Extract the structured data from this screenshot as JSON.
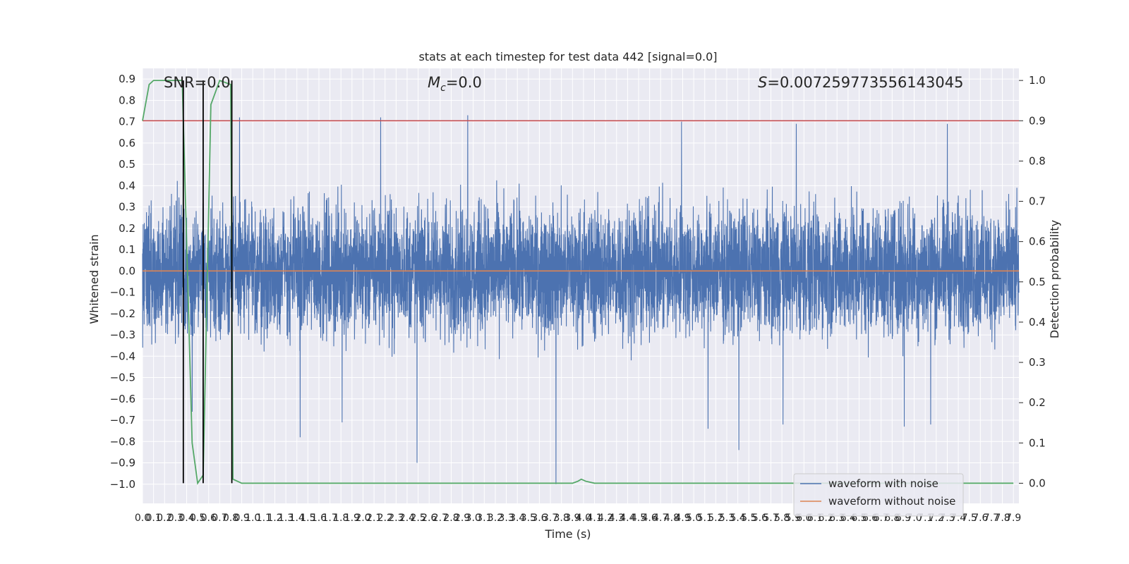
{
  "chart_data": {
    "type": "line",
    "title": "stats at each timestep for test data 442 [signal=0.0]",
    "xlabel": "Time (s)",
    "ylabel": "Whitened strain",
    "y2label": "Detection probability",
    "xlim": [
      0.0,
      7.95
    ],
    "ylim": [
      -1.09,
      0.95
    ],
    "y2lim": [
      -0.05,
      1.03
    ],
    "grid": true,
    "legend_position": "lower right",
    "x_ticks": [
      0.0,
      0.1,
      0.2,
      0.3,
      0.4,
      0.5,
      0.6,
      0.7,
      0.8,
      0.9,
      1.0,
      1.1,
      1.2,
      1.3,
      1.4,
      1.5,
      1.6,
      1.7,
      1.8,
      1.9,
      2.0,
      2.1,
      2.2,
      2.3,
      2.4,
      2.5,
      2.6,
      2.7,
      2.8,
      2.9,
      3.0,
      3.1,
      3.2,
      3.3,
      3.4,
      3.5,
      3.6,
      3.7,
      3.8,
      3.9,
      4.0,
      4.1,
      4.2,
      4.3,
      4.4,
      4.5,
      4.6,
      4.7,
      4.8,
      4.9,
      5.0,
      5.1,
      5.2,
      5.3,
      5.4,
      5.5,
      5.6,
      5.7,
      5.8,
      5.9,
      6.0,
      6.1,
      6.2,
      6.3,
      6.4,
      6.5,
      6.6,
      6.7,
      6.8,
      6.9,
      7.0,
      7.1,
      7.2,
      7.3,
      7.4,
      7.5,
      7.6,
      7.7,
      7.8,
      7.9
    ],
    "y_ticks": [
      -1.0,
      -0.9,
      -0.8,
      -0.7,
      -0.6,
      -0.5,
      -0.4,
      -0.3,
      -0.2,
      -0.1,
      0.0,
      0.1,
      0.2,
      0.3,
      0.4,
      0.5,
      0.6,
      0.7,
      0.8,
      0.9
    ],
    "y2_ticks": [
      0.0,
      0.1,
      0.2,
      0.3,
      0.4,
      0.5,
      0.6,
      0.7,
      0.8,
      0.9,
      1.0
    ],
    "annotations": {
      "snr": "SNR=0.0",
      "mc_symbol": "M",
      "mc_sub": "c",
      "mc_value": "=0.0",
      "s_symbol": "S",
      "s_value": "=0.007259773556143045"
    },
    "series": [
      {
        "name": "waveform with noise",
        "color": "#4c72b0",
        "style": "noise",
        "envelope_approx": {
          "upper_max": 0.73,
          "lower_min": -1.0,
          "dense_band": [
            -0.4,
            0.45
          ]
        },
        "notable_peaks": [
          {
            "x": 0.88,
            "y": 0.72
          },
          {
            "x": 2.16,
            "y": 0.72
          },
          {
            "x": 2.95,
            "y": 0.73
          },
          {
            "x": 4.89,
            "y": 0.7
          },
          {
            "x": 5.93,
            "y": 0.69
          },
          {
            "x": 7.3,
            "y": 0.69
          }
        ],
        "notable_troughs": [
          {
            "x": 0.45,
            "y": -0.66
          },
          {
            "x": 1.43,
            "y": -0.78
          },
          {
            "x": 1.81,
            "y": -0.71
          },
          {
            "x": 2.49,
            "y": -0.9
          },
          {
            "x": 3.75,
            "y": -1.0
          },
          {
            "x": 5.13,
            "y": -0.74
          },
          {
            "x": 5.41,
            "y": -0.84
          },
          {
            "x": 5.81,
            "y": -0.72
          },
          {
            "x": 6.91,
            "y": -0.73
          },
          {
            "x": 7.15,
            "y": -0.72
          }
        ]
      },
      {
        "name": "waveform without noise",
        "color": "#dd8452",
        "x": [
          0.0,
          7.95
        ],
        "y": [
          0.0,
          0.0
        ]
      },
      {
        "name": "",
        "color": "#55a868",
        "axis": "right",
        "x": [
          0.0,
          0.06,
          0.1,
          0.2,
          0.36,
          0.39,
          0.45,
          0.5,
          0.55,
          0.62,
          0.7,
          0.8,
          0.82,
          0.9,
          3.9,
          3.95,
          3.98,
          4.02,
          4.1,
          7.9
        ],
        "y": [
          0.9,
          0.99,
          1.0,
          1.0,
          1.0,
          0.7,
          0.1,
          0.0,
          0.02,
          0.94,
          1.0,
          0.99,
          0.01,
          0.0,
          0.0,
          0.005,
          0.01,
          0.005,
          0.0,
          0.0
        ]
      }
    ],
    "hlines": [
      {
        "y_right": 0.9,
        "color": "#c44e52"
      }
    ],
    "vlines": [
      {
        "x": 0.37,
        "color": "#000000"
      },
      {
        "x": 0.55,
        "color": "#000000"
      },
      {
        "x": 0.81,
        "color": "#000000"
      }
    ]
  }
}
